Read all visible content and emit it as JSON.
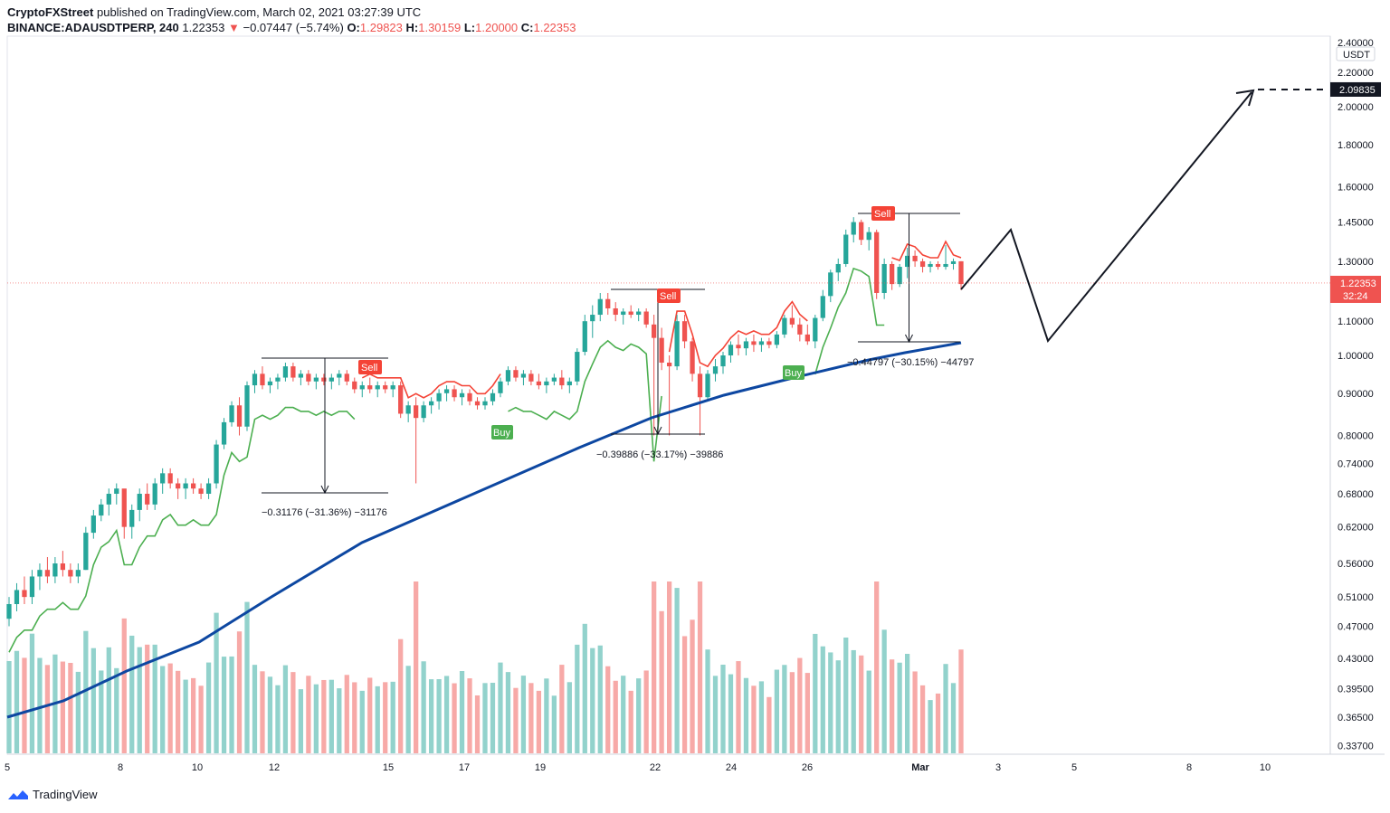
{
  "header": {
    "publisher": "CryptoFXStreet",
    "published_text": "published on TradingView.com, March 02, 2021 03:27:39 UTC",
    "symbol": "BINANCE:ADAUSDTPERP, 240",
    "last": "1.22353",
    "arrow": "▼",
    "change": "−0.07447 (−5.74%)",
    "open_label": "O:",
    "open": "1.29823",
    "high_label": "H:",
    "high": "1.30159",
    "low_label": "L:",
    "low": "1.20000",
    "close_label": "C:",
    "close": "1.22353"
  },
  "footer": {
    "brand": "TradingView"
  },
  "colors": {
    "up": "#26a69a",
    "down": "#ef5350",
    "ma": "#0d47a1",
    "st_up": "#4caf50",
    "st_down": "#f44336"
  },
  "chart_data": {
    "type": "candlestick",
    "currency": "USDT",
    "y_axis_ticks": [
      "2.40000",
      "2.20000",
      "2.00000",
      "1.80000",
      "1.60000",
      "1.45000",
      "1.30000",
      "1.10000",
      "1.00000",
      "0.90000",
      "0.80000",
      "0.74000",
      "0.68000",
      "0.62000",
      "0.56000",
      "0.51000",
      "0.47000",
      "0.43000",
      "0.39500",
      "0.36500",
      "0.33700"
    ],
    "x_axis_ticks": [
      "5",
      "8",
      "10",
      "12",
      "15",
      "17",
      "19",
      "22",
      "24",
      "26",
      "Mar",
      "3",
      "5",
      "8",
      "10"
    ],
    "last_price_label": "1.22353",
    "countdown_label": "32:24",
    "target_price_label": "2.09835",
    "target_price": 2.09835,
    "ohlc": [
      [
        0.48,
        0.51,
        0.47,
        0.5
      ],
      [
        0.5,
        0.53,
        0.49,
        0.52
      ],
      [
        0.52,
        0.54,
        0.5,
        0.51
      ],
      [
        0.51,
        0.55,
        0.5,
        0.54
      ],
      [
        0.54,
        0.56,
        0.52,
        0.55
      ],
      [
        0.55,
        0.57,
        0.53,
        0.54
      ],
      [
        0.54,
        0.57,
        0.53,
        0.56
      ],
      [
        0.56,
        0.58,
        0.54,
        0.55
      ],
      [
        0.55,
        0.56,
        0.53,
        0.54
      ],
      [
        0.54,
        0.56,
        0.53,
        0.55
      ],
      [
        0.55,
        0.62,
        0.55,
        0.61
      ],
      [
        0.61,
        0.65,
        0.6,
        0.64
      ],
      [
        0.64,
        0.67,
        0.63,
        0.66
      ],
      [
        0.66,
        0.69,
        0.64,
        0.68
      ],
      [
        0.68,
        0.7,
        0.66,
        0.69
      ],
      [
        0.69,
        0.68,
        0.6,
        0.62
      ],
      [
        0.62,
        0.66,
        0.6,
        0.65
      ],
      [
        0.65,
        0.69,
        0.63,
        0.68
      ],
      [
        0.68,
        0.7,
        0.65,
        0.66
      ],
      [
        0.66,
        0.71,
        0.65,
        0.7
      ],
      [
        0.7,
        0.73,
        0.68,
        0.72
      ],
      [
        0.72,
        0.73,
        0.69,
        0.7
      ],
      [
        0.7,
        0.71,
        0.67,
        0.69
      ],
      [
        0.69,
        0.71,
        0.67,
        0.7
      ],
      [
        0.7,
        0.71,
        0.68,
        0.69
      ],
      [
        0.69,
        0.7,
        0.67,
        0.68
      ],
      [
        0.68,
        0.71,
        0.67,
        0.7
      ],
      [
        0.7,
        0.79,
        0.69,
        0.78
      ],
      [
        0.78,
        0.84,
        0.77,
        0.83
      ],
      [
        0.83,
        0.88,
        0.82,
        0.87
      ],
      [
        0.87,
        0.89,
        0.8,
        0.82
      ],
      [
        0.82,
        0.93,
        0.81,
        0.92
      ],
      [
        0.92,
        0.96,
        0.9,
        0.95
      ],
      [
        0.95,
        0.97,
        0.91,
        0.92
      ],
      [
        0.92,
        0.94,
        0.9,
        0.93
      ],
      [
        0.93,
        0.95,
        0.91,
        0.94
      ],
      [
        0.94,
        0.98,
        0.93,
        0.97
      ],
      [
        0.97,
        0.98,
        0.93,
        0.94
      ],
      [
        0.94,
        0.96,
        0.92,
        0.95
      ],
      [
        0.95,
        0.96,
        0.92,
        0.93
      ],
      [
        0.93,
        0.95,
        0.91,
        0.94
      ],
      [
        0.94,
        0.95,
        0.92,
        0.93
      ],
      [
        0.93,
        0.95,
        0.91,
        0.94
      ],
      [
        0.94,
        0.96,
        0.92,
        0.95
      ],
      [
        0.95,
        0.96,
        0.92,
        0.93
      ],
      [
        0.93,
        0.94,
        0.9,
        0.91
      ],
      [
        0.91,
        0.93,
        0.89,
        0.92
      ],
      [
        0.92,
        0.94,
        0.9,
        0.91
      ],
      [
        0.91,
        0.93,
        0.89,
        0.92
      ],
      [
        0.92,
        0.93,
        0.9,
        0.91
      ],
      [
        0.91,
        0.93,
        0.89,
        0.92
      ],
      [
        0.92,
        0.93,
        0.84,
        0.85
      ],
      [
        0.85,
        0.88,
        0.83,
        0.87
      ],
      [
        0.87,
        0.89,
        0.7,
        0.84
      ],
      [
        0.84,
        0.88,
        0.83,
        0.87
      ],
      [
        0.87,
        0.89,
        0.85,
        0.88
      ],
      [
        0.88,
        0.91,
        0.86,
        0.9
      ],
      [
        0.9,
        0.92,
        0.88,
        0.91
      ],
      [
        0.91,
        0.92,
        0.88,
        0.89
      ],
      [
        0.89,
        0.91,
        0.87,
        0.9
      ],
      [
        0.9,
        0.91,
        0.87,
        0.88
      ],
      [
        0.88,
        0.89,
        0.86,
        0.87
      ],
      [
        0.87,
        0.89,
        0.86,
        0.88
      ],
      [
        0.88,
        0.91,
        0.87,
        0.9
      ],
      [
        0.9,
        0.94,
        0.89,
        0.93
      ],
      [
        0.93,
        0.97,
        0.92,
        0.96
      ],
      [
        0.96,
        0.97,
        0.93,
        0.94
      ],
      [
        0.94,
        0.96,
        0.92,
        0.95
      ],
      [
        0.95,
        0.96,
        0.92,
        0.93
      ],
      [
        0.93,
        0.95,
        0.91,
        0.92
      ],
      [
        0.92,
        0.94,
        0.9,
        0.93
      ],
      [
        0.93,
        0.95,
        0.92,
        0.94
      ],
      [
        0.94,
        0.96,
        0.91,
        0.92
      ],
      [
        0.92,
        0.94,
        0.9,
        0.93
      ],
      [
        0.93,
        1.02,
        0.92,
        1.01
      ],
      [
        1.01,
        1.12,
        1.0,
        1.1
      ],
      [
        1.1,
        1.15,
        1.05,
        1.12
      ],
      [
        1.12,
        1.19,
        1.1,
        1.17
      ],
      [
        1.17,
        1.19,
        1.12,
        1.14
      ],
      [
        1.14,
        1.16,
        1.1,
        1.12
      ],
      [
        1.12,
        1.14,
        1.09,
        1.13
      ],
      [
        1.13,
        1.15,
        1.11,
        1.12
      ],
      [
        1.12,
        1.14,
        1.1,
        1.13
      ],
      [
        1.13,
        1.14,
        1.08,
        1.09
      ],
      [
        1.09,
        1.12,
        0.8,
        1.05
      ],
      [
        1.05,
        1.08,
        0.96,
        0.98
      ],
      [
        0.98,
        1.0,
        0.8,
        0.97
      ],
      [
        0.97,
        1.12,
        0.96,
        1.1
      ],
      [
        1.1,
        1.12,
        1.02,
        1.04
      ],
      [
        1.04,
        1.05,
        0.93,
        0.95
      ],
      [
        0.95,
        0.97,
        0.8,
        0.89
      ],
      [
        0.89,
        0.96,
        0.88,
        0.95
      ],
      [
        0.95,
        0.99,
        0.93,
        0.97
      ],
      [
        0.97,
        1.01,
        0.95,
        1.0
      ],
      [
        1.0,
        1.04,
        0.98,
        1.03
      ],
      [
        1.03,
        1.06,
        1.0,
        1.02
      ],
      [
        1.02,
        1.05,
        1.0,
        1.04
      ],
      [
        1.04,
        1.06,
        1.01,
        1.03
      ],
      [
        1.03,
        1.05,
        1.01,
        1.04
      ],
      [
        1.04,
        1.05,
        1.02,
        1.03
      ],
      [
        1.03,
        1.07,
        1.02,
        1.06
      ],
      [
        1.06,
        1.12,
        1.05,
        1.11
      ],
      [
        1.11,
        1.15,
        1.08,
        1.09
      ],
      [
        1.09,
        1.11,
        1.04,
        1.06
      ],
      [
        1.06,
        1.09,
        1.03,
        1.04
      ],
      [
        1.04,
        1.12,
        1.02,
        1.11
      ],
      [
        1.11,
        1.2,
        1.1,
        1.18
      ],
      [
        1.18,
        1.27,
        1.16,
        1.26
      ],
      [
        1.26,
        1.31,
        1.23,
        1.29
      ],
      [
        1.29,
        1.42,
        1.28,
        1.4
      ],
      [
        1.4,
        1.47,
        1.37,
        1.45
      ],
      [
        1.45,
        1.46,
        1.36,
        1.38
      ],
      [
        1.38,
        1.43,
        1.34,
        1.41
      ],
      [
        1.41,
        1.42,
        1.17,
        1.19
      ],
      [
        1.19,
        1.31,
        1.17,
        1.29
      ],
      [
        1.29,
        1.3,
        1.2,
        1.22
      ],
      [
        1.22,
        1.29,
        1.21,
        1.28
      ],
      [
        1.28,
        1.35,
        1.24,
        1.32
      ],
      [
        1.32,
        1.34,
        1.28,
        1.3
      ],
      [
        1.3,
        1.31,
        1.26,
        1.28
      ],
      [
        1.28,
        1.3,
        1.26,
        1.29
      ],
      [
        1.29,
        1.3,
        1.27,
        1.28
      ],
      [
        1.28,
        1.36,
        1.27,
        1.29
      ],
      [
        1.29,
        1.31,
        1.27,
        1.3
      ],
      [
        1.3,
        1.3,
        1.2,
        1.22
      ]
    ],
    "annotations": [
      {
        "text": "−0.31176 (−31.36%) −31176"
      },
      {
        "text": "−0.39886 (−33.17%) −39886"
      },
      {
        "text": "−0.44797 (−30.15%) −44797"
      }
    ],
    "signals": [
      "Sell",
      "Buy",
      "Sell",
      "Buy",
      "Sell"
    ]
  }
}
